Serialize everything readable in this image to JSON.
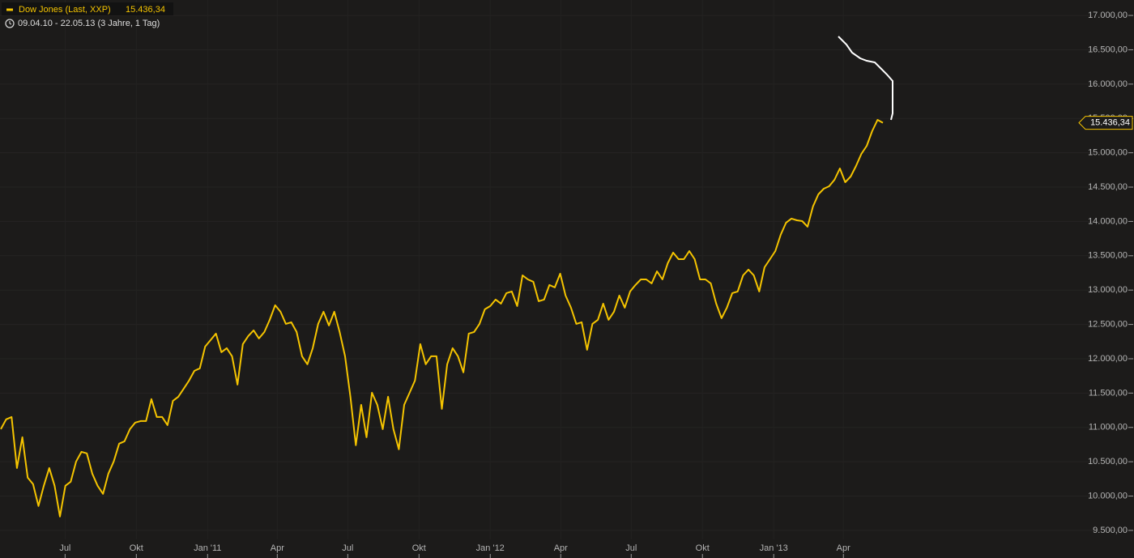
{
  "chart_data": {
    "type": "line",
    "subtitle": "09.04.10 - 22.05.13 (3 Jahre, 1 Tag)",
    "current_label": "15.436,34",
    "xlim": [
      "2010-04-09",
      "2013-05-22"
    ],
    "xticks": [
      {
        "value": "2010-07",
        "label": "Jul"
      },
      {
        "value": "2010-10",
        "label": "Okt"
      },
      {
        "value": "2011-01",
        "label": "Jan '11"
      },
      {
        "value": "2011-04",
        "label": "Apr"
      },
      {
        "value": "2011-07",
        "label": "Jul"
      },
      {
        "value": "2011-10",
        "label": "Okt"
      },
      {
        "value": "2012-01",
        "label": "Jan '12"
      },
      {
        "value": "2012-04",
        "label": "Apr"
      },
      {
        "value": "2012-07",
        "label": "Jul"
      },
      {
        "value": "2012-10",
        "label": "Okt"
      },
      {
        "value": "2013-01",
        "label": "Jan '13"
      },
      {
        "value": "2013-04",
        "label": "Apr"
      }
    ],
    "ylim": [
      9275,
      17225
    ],
    "yticks": [
      {
        "value": 9500,
        "label": "9.500,00"
      },
      {
        "value": 10000,
        "label": "10.000,00"
      },
      {
        "value": 10500,
        "label": "10.500,00"
      },
      {
        "value": 11000,
        "label": "11.000,00"
      },
      {
        "value": 11500,
        "label": "11.500,00"
      },
      {
        "value": 12000,
        "label": "12.000,00"
      },
      {
        "value": 12500,
        "label": "12.500,00"
      },
      {
        "value": 13000,
        "label": "13.000,00"
      },
      {
        "value": 13500,
        "label": "13.500,00"
      },
      {
        "value": 14000,
        "label": "14.000,00"
      },
      {
        "value": 14500,
        "label": "14.500,00"
      },
      {
        "value": 15000,
        "label": "15.000,00"
      },
      {
        "value": 15500,
        "label": "15.500,00"
      },
      {
        "value": 16000,
        "label": "16.000,00"
      },
      {
        "value": 16500,
        "label": "16.500,00"
      },
      {
        "value": 17000,
        "label": "17.000,00"
      }
    ],
    "grid": true,
    "series": [
      {
        "name": "Dow Jones (Last, XXP)",
        "color": "#f5c400",
        "values": [
          10975,
          11117,
          11152,
          10409,
          10857,
          10268,
          10174,
          9855,
          10150,
          10409,
          10150,
          9702,
          10150,
          10209,
          10504,
          10645,
          10622,
          10327,
          10150,
          10032,
          10327,
          10504,
          10763,
          10798,
          10975,
          11070,
          11093,
          11093,
          11412,
          11152,
          11152,
          11034,
          11388,
          11447,
          11565,
          11683,
          11824,
          11860,
          12178,
          12272,
          12367,
          12095,
          12154,
          12036,
          11624,
          12213,
          12331,
          12414,
          12296,
          12390,
          12567,
          12779,
          12685,
          12508,
          12532,
          12390,
          12036,
          11919,
          12154,
          12508,
          12685,
          12484,
          12685,
          12390,
          12036,
          11447,
          10740,
          11329,
          10857,
          11506,
          11329,
          10975,
          11447,
          10975,
          10681,
          11329,
          11506,
          11683,
          12213,
          11919,
          12036,
          12036,
          11270,
          11919,
          12154,
          12036,
          11801,
          12367,
          12390,
          12508,
          12720,
          12767,
          12862,
          12803,
          12956,
          12980,
          12767,
          13215,
          13156,
          13121,
          12838,
          12862,
          13074,
          13039,
          13239,
          12921,
          12744,
          12508,
          12532,
          12131,
          12508,
          12567,
          12803,
          12567,
          12685,
          12921,
          12744,
          12980,
          13074,
          13156,
          13156,
          13098,
          13274,
          13156,
          13392,
          13546,
          13451,
          13451,
          13569,
          13451,
          13156,
          13156,
          13098,
          12803,
          12591,
          12744,
          12956,
          12980,
          13215,
          13298,
          13215,
          12980,
          13333,
          13451,
          13569,
          13805,
          13982,
          14041,
          14017,
          14005,
          13923,
          14218,
          14394,
          14477,
          14512,
          14607,
          14772,
          14571,
          14654,
          14807,
          14984,
          15102,
          15314,
          15479,
          15436.34
        ]
      }
    ]
  }
}
